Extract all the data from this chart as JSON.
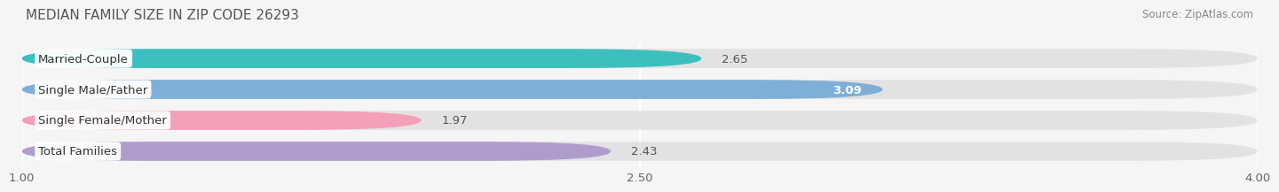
{
  "title": "MEDIAN FAMILY SIZE IN ZIP CODE 26293",
  "source": "Source: ZipAtlas.com",
  "categories": [
    "Married-Couple",
    "Single Male/Father",
    "Single Female/Mother",
    "Total Families"
  ],
  "values": [
    2.65,
    3.09,
    1.97,
    2.43
  ],
  "bar_colors": [
    "#3dbfbf",
    "#7fafd6",
    "#f4a0b8",
    "#b09ccc"
  ],
  "bar_height": 0.62,
  "xlim": [
    1.0,
    4.0
  ],
  "xticks": [
    1.0,
    2.5,
    4.0
  ],
  "xticklabels": [
    "1.00",
    "2.50",
    "4.00"
  ],
  "background_color": "#f5f5f5",
  "bar_background_color": "#e2e2e2",
  "label_fontsize": 9.5,
  "value_fontsize": 9.5,
  "title_fontsize": 11,
  "source_fontsize": 8.5
}
